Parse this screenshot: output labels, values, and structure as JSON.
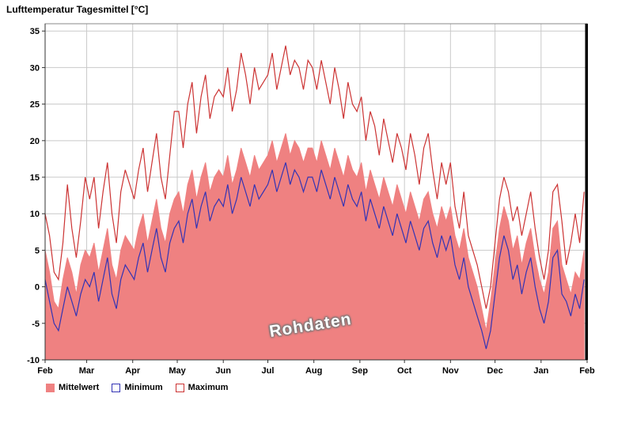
{
  "chart_data": {
    "type": "line",
    "title": "Lufttemperatur Tagesmittel [°C]",
    "watermark": "Rohdaten",
    "xlabel": "",
    "ylabel": "",
    "ylim": [
      -10,
      36
    ],
    "y_ticks": [
      35,
      30,
      25,
      20,
      15,
      10,
      5,
      0,
      -5,
      -10
    ],
    "x_tick_labels": [
      "Feb",
      "Mar",
      "Apr",
      "May",
      "Jun",
      "Jul",
      "Aug",
      "Sep",
      "Oct",
      "Nov",
      "Dec",
      "Jan",
      "Feb"
    ],
    "month_boundaries_days": [
      0,
      28,
      59,
      89,
      120,
      150,
      181,
      212,
      242,
      273,
      303,
      334,
      365
    ],
    "x_step_days": 3,
    "grid": true,
    "legend_position": "bottom",
    "frame_color": "#8a8a8a",
    "grid_color": "#c9c9c9",
    "right_marker_color": "#000000",
    "series": [
      {
        "name": "Mittelwert",
        "type": "area",
        "legend_fill": "solid",
        "color": "#ef8181",
        "values": [
          5,
          2,
          -2,
          -3,
          1,
          4,
          2,
          -1,
          3,
          5,
          4,
          6,
          2,
          5,
          8,
          3,
          1,
          5,
          7,
          6,
          5,
          8,
          10,
          6,
          9,
          12,
          8,
          6,
          10,
          12,
          13,
          10,
          14,
          16,
          12,
          15,
          17,
          13,
          15,
          16,
          15,
          18,
          14,
          16,
          19,
          17,
          15,
          18,
          16,
          17,
          18,
          20,
          17,
          19,
          21,
          18,
          20,
          19,
          17,
          19,
          19,
          17,
          20,
          18,
          16,
          19,
          17,
          15,
          18,
          16,
          15,
          17,
          13,
          16,
          14,
          12,
          15,
          13,
          11,
          14,
          12,
          10,
          13,
          11,
          9,
          12,
          13,
          10,
          8,
          11,
          9,
          11,
          7,
          5,
          8,
          4,
          2,
          0,
          -3,
          -6,
          -2,
          3,
          8,
          11,
          9,
          5,
          7,
          3,
          6,
          8,
          4,
          1,
          -1,
          2,
          8,
          9,
          3,
          1,
          -1,
          2,
          1,
          5
        ]
      },
      {
        "name": "Minimum",
        "type": "line",
        "legend_fill": "outline",
        "color": "#3333b4",
        "values": [
          1,
          -2,
          -5,
          -6,
          -3,
          0,
          -2,
          -4,
          -1,
          1,
          0,
          2,
          -2,
          1,
          4,
          -1,
          -3,
          1,
          3,
          2,
          1,
          4,
          6,
          2,
          5,
          8,
          4,
          2,
          6,
          8,
          9,
          6,
          10,
          12,
          8,
          11,
          13,
          9,
          11,
          12,
          11,
          14,
          10,
          12,
          15,
          13,
          11,
          14,
          12,
          13,
          14,
          16,
          13,
          15,
          17,
          14,
          16,
          15,
          13,
          15,
          15,
          13,
          16,
          14,
          12,
          15,
          13,
          11,
          14,
          12,
          11,
          13,
          9,
          12,
          10,
          8,
          11,
          9,
          7,
          10,
          8,
          6,
          9,
          7,
          5,
          8,
          9,
          6,
          4,
          7,
          5,
          7,
          3,
          1,
          4,
          0,
          -2,
          -4,
          -6,
          -8.5,
          -6,
          -1,
          4,
          7,
          5,
          1,
          3,
          -1,
          2,
          4,
          0,
          -3,
          -5,
          -2,
          4,
          5,
          -1,
          -2,
          -4,
          -1,
          -3,
          1
        ]
      },
      {
        "name": "Maximum",
        "type": "line",
        "legend_fill": "outline",
        "color": "#cc3333",
        "values": [
          10,
          7,
          2,
          1,
          6,
          14,
          8,
          4,
          9,
          15,
          12,
          15,
          8,
          13,
          17,
          10,
          6,
          13,
          16,
          14,
          12,
          16,
          19,
          13,
          17,
          21,
          15,
          12,
          18,
          24,
          24,
          19,
          25,
          28,
          21,
          26,
          29,
          23,
          26,
          27,
          26,
          30,
          24,
          27,
          32,
          29,
          25,
          30,
          27,
          28,
          29,
          32,
          27,
          30,
          33,
          29,
          31,
          30,
          27,
          31,
          30,
          27,
          31,
          28,
          25,
          30,
          27,
          23,
          28,
          25,
          24,
          26,
          20,
          24,
          22,
          18,
          23,
          20,
          17,
          21,
          19,
          16,
          21,
          18,
          14,
          19,
          21,
          16,
          12,
          17,
          14,
          17,
          11,
          8,
          13,
          7,
          5,
          3,
          0,
          -3,
          0,
          6,
          12,
          15,
          13,
          9,
          11,
          7,
          10,
          13,
          8,
          4,
          1,
          5,
          13,
          14,
          9,
          3,
          6,
          10,
          6,
          13
        ]
      }
    ]
  }
}
